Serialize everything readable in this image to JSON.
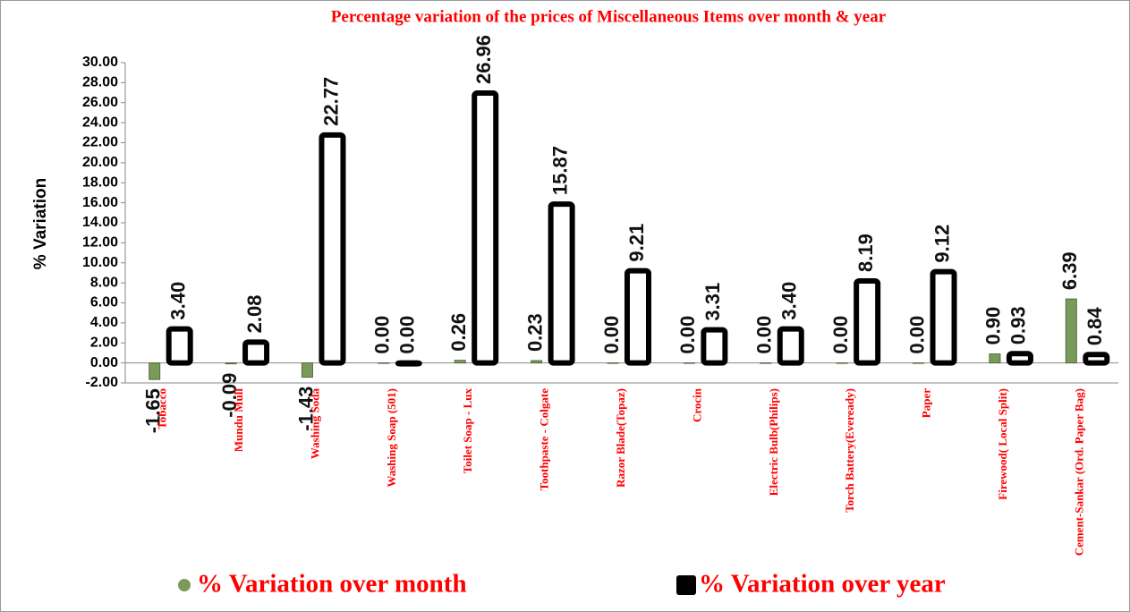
{
  "chart_data": {
    "type": "bar",
    "title": "Percentage variation of the prices of Miscellaneous Items over month & year",
    "y_label": "% Variation",
    "categories": [
      "Tobacco",
      "Mundu Mull",
      "Washing Soda",
      "Washing Soap (501)",
      "Toilet Soap - Lux",
      "Toothpaste - Colgate",
      "Razor Blade(Topaz)",
      "Crocin",
      "Electric Bulb(Philips)",
      "Torch Battery(Eveready)",
      "Paper",
      "Firewood( Local Split)",
      "Cement-Sankar (Ord. Paper Bag)"
    ],
    "series": [
      {
        "name": "% Variation over month",
        "color": "#7a9a5a",
        "values": [
          -1.65,
          -0.09,
          -1.43,
          0,
          0.26,
          0.23,
          0,
          0,
          0,
          0,
          0,
          0.9,
          6.39
        ],
        "value_labels": [
          "-1.65",
          "-0.09",
          "-1.43",
          "0.00",
          "0.26",
          "0.23",
          "0.00",
          "0.00",
          "0.00",
          "0.00",
          "0.00",
          "0.90",
          "6.39"
        ]
      },
      {
        "name": "% Variation over year",
        "color": "#000000",
        "values": [
          3.4,
          2.08,
          22.77,
          0,
          26.96,
          15.87,
          9.21,
          3.31,
          3.4,
          8.19,
          9.12,
          0.93,
          0.84
        ],
        "value_labels": [
          "3.40",
          "2.08",
          "22.77",
          "0.00",
          "26.96",
          "15.87",
          "9.21",
          "3.31",
          "3.40",
          "8.19",
          "9.12",
          "0.93",
          "0.84"
        ]
      }
    ],
    "ylim": [
      -2,
      30
    ],
    "yticks": [
      {
        "value": -2,
        "label": "-2.00"
      },
      {
        "value": 0,
        "label": "0.00"
      },
      {
        "value": 2,
        "label": "2.00"
      },
      {
        "value": 4,
        "label": "4.00"
      },
      {
        "value": 6,
        "label": "6.00"
      },
      {
        "value": 8,
        "label": "8.00"
      },
      {
        "value": 10,
        "label": "10.00"
      },
      {
        "value": 12,
        "label": "12.00"
      },
      {
        "value": 14,
        "label": "14.00"
      },
      {
        "value": 16,
        "label": "16.00"
      },
      {
        "value": 18,
        "label": "18.00"
      },
      {
        "value": 20,
        "label": "20.00"
      },
      {
        "value": 22,
        "label": "22.00"
      },
      {
        "value": 24,
        "label": "24.00"
      },
      {
        "value": 26,
        "label": "26.00"
      },
      {
        "value": 28,
        "label": "28.00"
      },
      {
        "value": 30,
        "label": "30.00"
      }
    ],
    "grid": false
  }
}
